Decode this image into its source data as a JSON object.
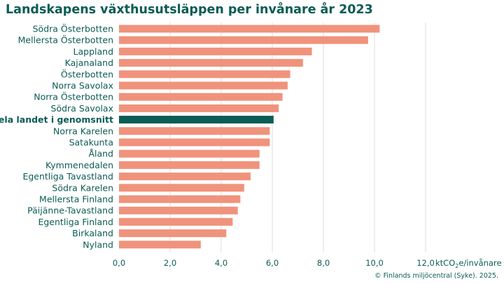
{
  "chart_data": {
    "type": "bar",
    "orientation": "horizontal",
    "title": "Landskapens växthusutsläppen per invånare år 2023",
    "categories": [
      "Södra Österbotten",
      "Mellersta Österbotten",
      "Lappland",
      "Kajanaland",
      "Österbotten",
      "Norra Savolax",
      "Norra Österbotten",
      "Södra Savolax",
      "Hela landet i genomsnitt",
      "Norra Karelen",
      "Satakunta",
      "Åland",
      "Kymmenedalen",
      "Egentliga Tavastland",
      "Södra Karelen",
      "Mellersta Finland",
      "Päijänne-Tavastland",
      "Egentliga Finland",
      "Birkaland",
      "Nyland"
    ],
    "values": [
      10.2,
      9.75,
      7.55,
      7.2,
      6.7,
      6.6,
      6.4,
      6.25,
      6.05,
      5.9,
      5.9,
      5.5,
      5.5,
      5.15,
      4.9,
      4.75,
      4.65,
      4.45,
      4.2,
      3.2
    ],
    "highlight_category": "Hela landet i genomsnitt",
    "xlim": [
      0,
      12
    ],
    "xticks": [
      "0,0",
      "2,0",
      "4,0",
      "6,0",
      "8,0",
      "10,0",
      "12,0"
    ],
    "xlabel_main": "ktCO",
    "xlabel_sub": "2",
    "xlabel_rest": "e/invånare",
    "grid": "vertical",
    "colors": {
      "bar": "#f0937c",
      "highlight": "#0b5c55",
      "text": "#0b5c55",
      "grid": "#dcdcdc"
    }
  },
  "source": "© Finlands miljöcentral (Syke). 2025."
}
